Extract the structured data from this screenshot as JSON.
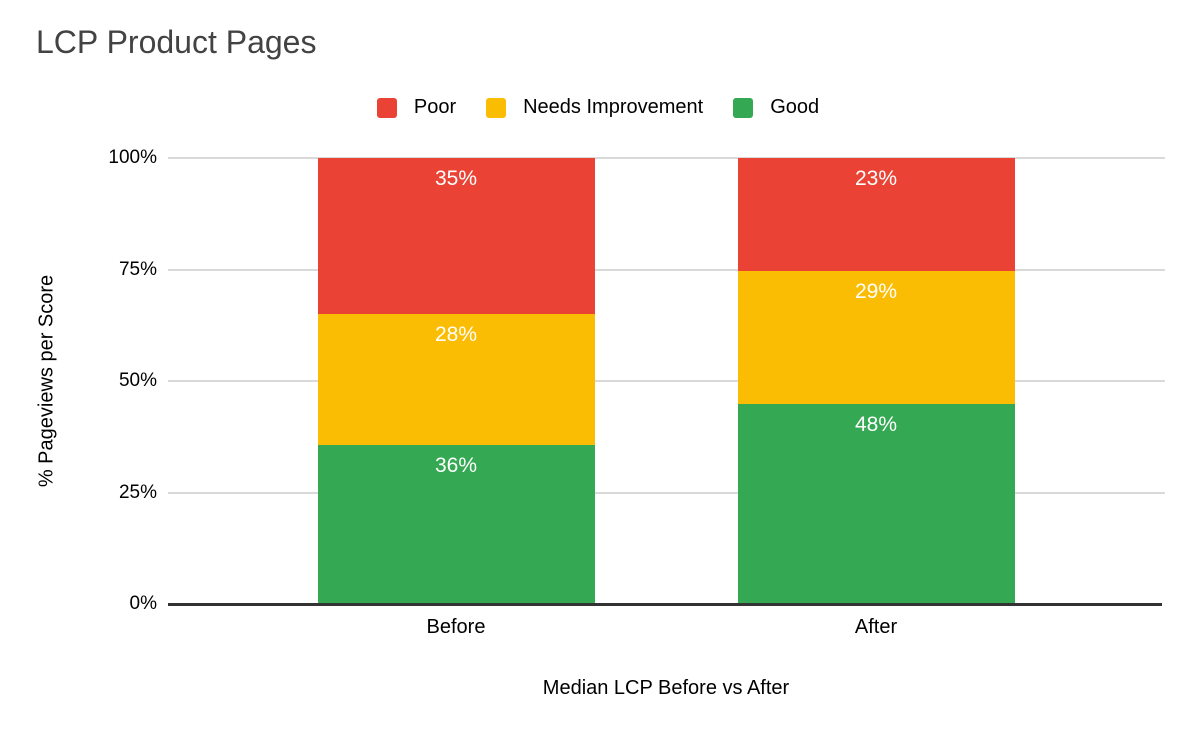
{
  "chart_data": {
    "type": "bar",
    "stacked": true,
    "title": "LCP Product Pages",
    "categories": [
      "Before",
      "After"
    ],
    "series": [
      {
        "name": "Poor",
        "color": "#EA4335",
        "values": [
          35,
          23
        ],
        "labels": [
          "35%",
          "23%"
        ]
      },
      {
        "name": "Needs Improvement",
        "color": "#FBBC04",
        "values": [
          28,
          29
        ],
        "labels": [
          "28%",
          "29%"
        ]
      },
      {
        "name": "Good",
        "color": "#34A853",
        "values": [
          36,
          48
        ],
        "labels": [
          "36%",
          "48%"
        ]
      }
    ],
    "xlabel": "Median LCP Before vs After",
    "ylabel": "% Pageviews per Score",
    "ylim": [
      0,
      100
    ],
    "y_ticks": [
      {
        "value": 100,
        "label": "100%"
      },
      {
        "value": 75,
        "label": "75%"
      },
      {
        "value": 50,
        "label": "50%"
      },
      {
        "value": 25,
        "label": "25%"
      },
      {
        "value": 0,
        "label": "0%"
      }
    ],
    "legend_position": "top",
    "grid": true,
    "colors": {
      "poor": "#EA4335",
      "needs_improvement": "#FBBC04",
      "good": "#34A853",
      "gridline": "#D9D9D9",
      "axis_line": "#333333",
      "title_text": "#434343",
      "axis_text": "#000000",
      "data_label_text": "#FFFFFF",
      "background": "#FFFFFF"
    }
  }
}
